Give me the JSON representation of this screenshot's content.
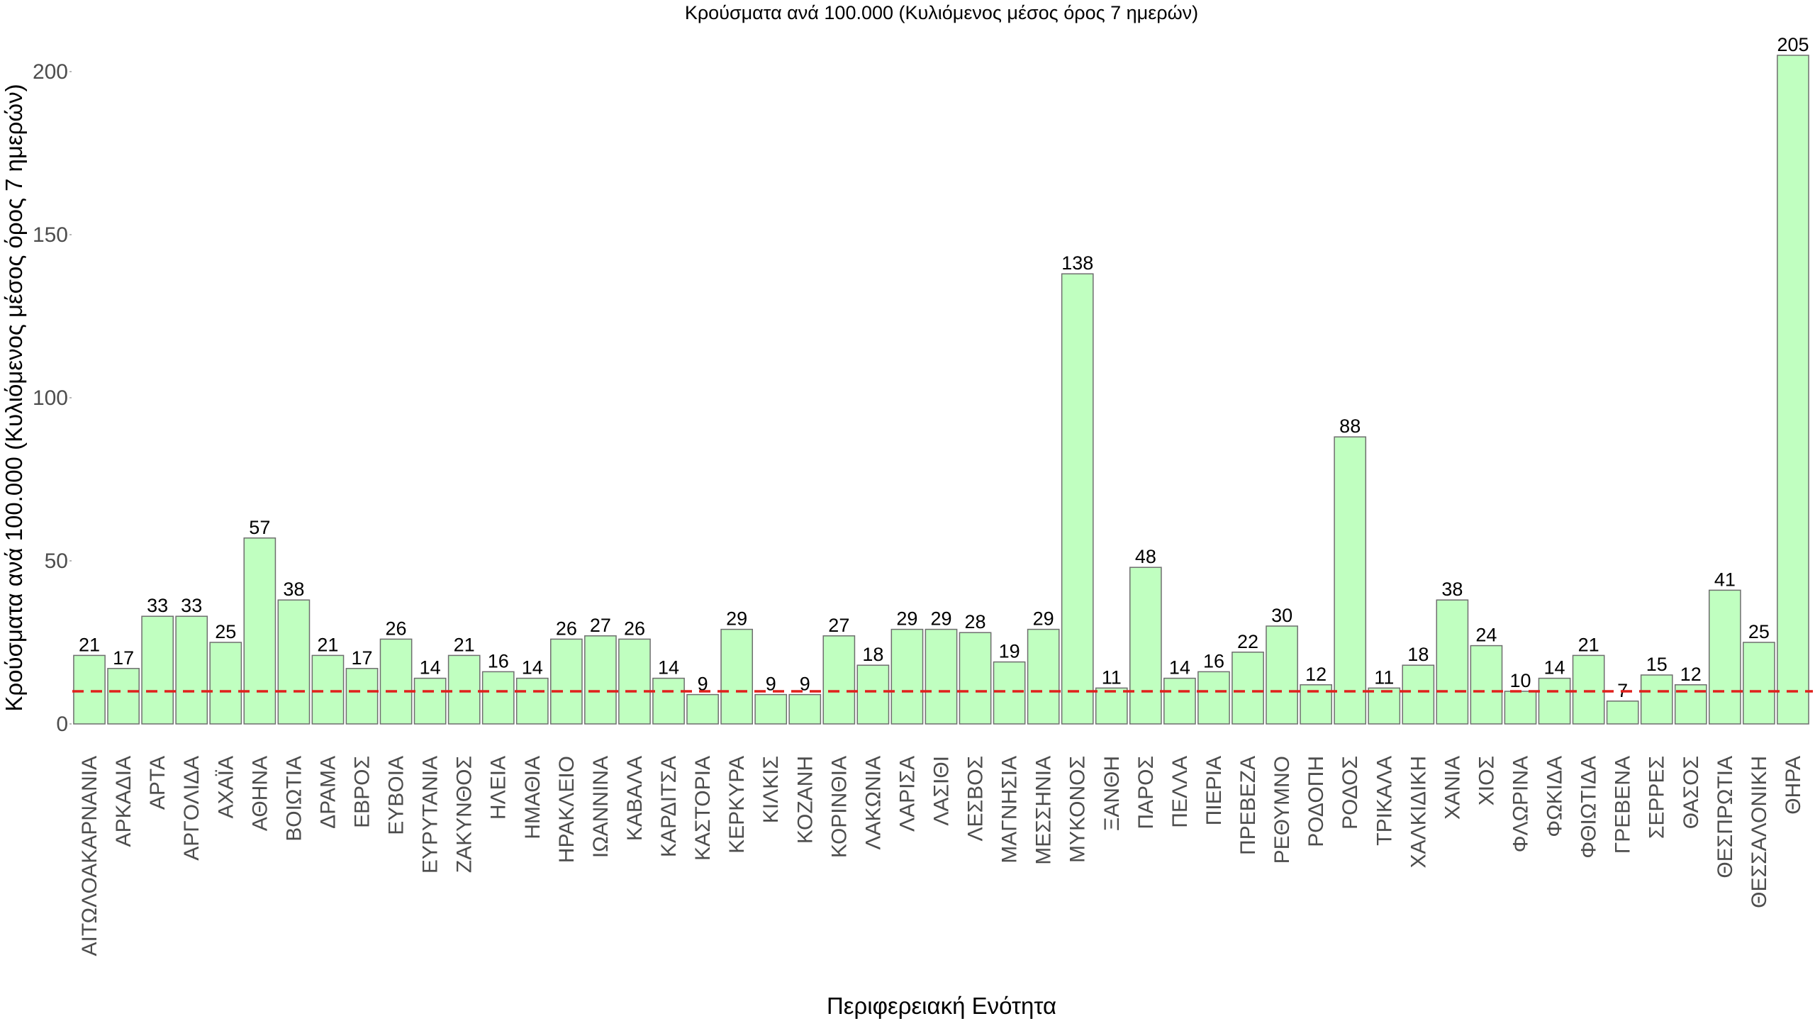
{
  "chart_data": {
    "type": "bar",
    "title": "Κρούσματα ανά 100.000 (Κυλιόμενος μέσος όρος 7 ημερών)",
    "xlabel": "Περιφερειακή Ενότητα",
    "ylabel": "Κρούσματα ανά 100.000 (Κυλιόμενος μέσος όρος 7 ημερών)",
    "ylim": [
      0,
      210
    ],
    "yticks": [
      0,
      50,
      100,
      150,
      200
    ],
    "reference_line": {
      "value": 10,
      "style": "dashed",
      "color": "#e0201c"
    },
    "bar_color": "#c0ffc0",
    "grid": false,
    "categories": [
      "ΑΙΤΩΛΟΑΚΑΡΝΑΝΙΑ",
      "ΑΡΚΑΔΙΑ",
      "ΑΡΤΑ",
      "ΑΡΓΟΛΙΔΑ",
      "ΑΧΑΪΑ",
      "ΑΘΗΝΑ",
      "ΒΟΙΩΤΙΑ",
      "ΔΡΑΜΑ",
      "ΕΒΡΟΣ",
      "ΕΥΒΟΙΑ",
      "ΕΥΡΥΤΑΝΙΑ",
      "ΖΑΚΥΝΘΟΣ",
      "ΗΛΕΙΑ",
      "ΗΜΑΘΙΑ",
      "ΗΡΑΚΛΕΙΟ",
      "ΙΩΑΝΝΙΝΑ",
      "ΚΑΒΑΛΑ",
      "ΚΑΡΔΙΤΣΑ",
      "ΚΑΣΤΟΡΙΑ",
      "ΚΕΡΚΥΡΑ",
      "ΚΙΛΚΙΣ",
      "ΚΟΖΑΝΗ",
      "ΚΟΡΙΝΘΙΑ",
      "ΛΑΚΩΝΙΑ",
      "ΛΑΡΙΣΑ",
      "ΛΑΣΙΘΙ",
      "ΛΕΣΒΟΣ",
      "ΜΑΓΝΗΣΙΑ",
      "ΜΕΣΣΗΝΙΑ",
      "ΜΥΚΟΝΟΣ",
      "ΞΑΝΘΗ",
      "ΠΑΡΟΣ",
      "ΠΕΛΛΑ",
      "ΠΙΕΡΙΑ",
      "ΠΡΕΒΕΖΑ",
      "ΡΕΘΥΜΝΟ",
      "ΡΟΔΟΠΗ",
      "ΡΟΔΟΣ",
      "ΤΡΙΚΑΛΑ",
      "ΧΑΛΚΙΔΙΚΗ",
      "ΧΑΝΙΑ",
      "ΧΙΟΣ",
      "ΦΛΩΡΙΝΑ",
      "ΦΩΚΙΔΑ",
      "ΦΘΙΩΤΙΔΑ",
      "ΓΡΕΒΕΝΑ",
      "ΣΕΡΡΕΣ",
      "ΘΑΣΟΣ",
      "ΘΕΣΠΡΩΤΙΑ",
      "ΘΕΣΣΑΛΟΝΙΚΗ",
      "ΘΗΡΑ"
    ],
    "values": [
      21,
      17,
      33,
      33,
      25,
      57,
      38,
      21,
      17,
      26,
      14,
      21,
      16,
      14,
      26,
      27,
      26,
      14,
      9,
      29,
      9,
      9,
      27,
      18,
      29,
      29,
      28,
      19,
      29,
      138,
      11,
      48,
      14,
      16,
      22,
      30,
      12,
      88,
      11,
      18,
      38,
      24,
      10,
      14,
      21,
      7,
      15,
      12,
      41,
      25,
      205
    ]
  }
}
